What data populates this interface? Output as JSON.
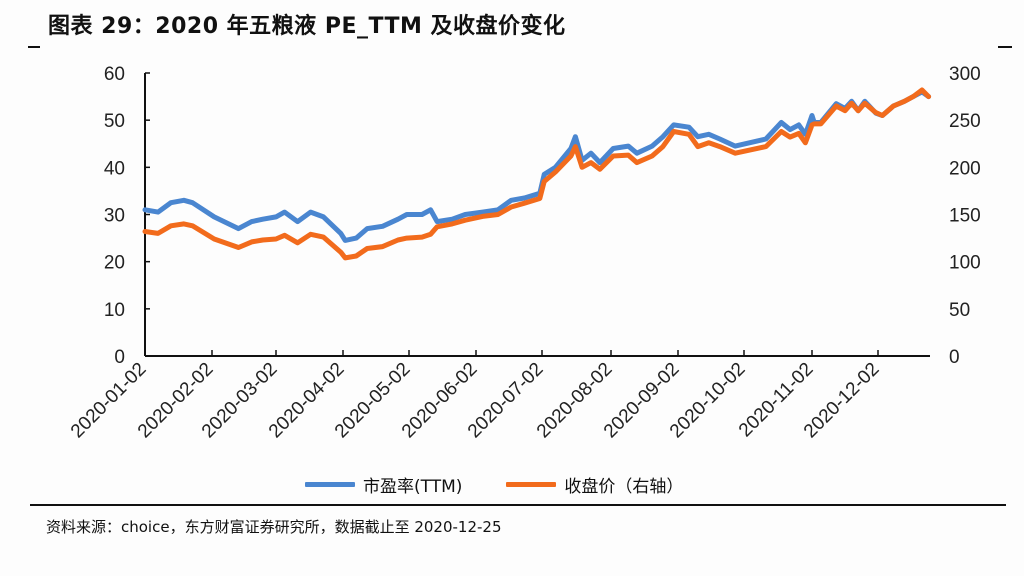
{
  "header": {
    "title": "图表 29：2020 年五粮液 PE_TTM 及收盘价变化"
  },
  "legend": {
    "pe": {
      "label": "市盈率(TTM)",
      "color": "#4a86d0"
    },
    "price": {
      "label": "收盘价（右轴）",
      "color": "#f26b1c"
    }
  },
  "footer": {
    "source": "资料来源：choice，东方财富证券研究所，数据截止至 2020-12-25"
  },
  "chart_data": {
    "type": "line",
    "title": "图表 29：2020 年五粮液 PE_TTM 及收盘价变化",
    "xlabel": "",
    "ylabel_left": "市盈率(TTM)",
    "ylabel_right": "收盘价（右轴）",
    "x_ticks": [
      "2020-01-02",
      "2020-02-02",
      "2020-03-02",
      "2020-04-02",
      "2020-05-02",
      "2020-06-02",
      "2020-07-02",
      "2020-08-02",
      "2020-09-02",
      "2020-10-02",
      "2020-11-02",
      "2020-12-02"
    ],
    "y_left_ticks": [
      0,
      10,
      20,
      30,
      40,
      50,
      60
    ],
    "y_right_ticks": [
      0,
      50,
      100,
      150,
      200,
      250,
      300
    ],
    "ylim_left": [
      0,
      60
    ],
    "ylim_right": [
      0,
      300
    ],
    "grid": false,
    "legend_position": "bottom",
    "series": [
      {
        "name": "市盈率(TTM)",
        "axis": "left",
        "color": "#4a86d0",
        "points": [
          [
            "2020-01-02",
            31.0
          ],
          [
            "2020-01-08",
            30.5
          ],
          [
            "2020-01-14",
            32.5
          ],
          [
            "2020-01-20",
            33.0
          ],
          [
            "2020-01-24",
            32.5
          ],
          [
            "2020-02-03",
            29.5
          ],
          [
            "2020-02-14",
            27.0
          ],
          [
            "2020-02-20",
            28.5
          ],
          [
            "2020-02-25",
            29.0
          ],
          [
            "2020-03-02",
            29.5
          ],
          [
            "2020-03-06",
            30.5
          ],
          [
            "2020-03-12",
            28.5
          ],
          [
            "2020-03-18",
            30.5
          ],
          [
            "2020-03-24",
            29.5
          ],
          [
            "2020-04-01",
            26.0
          ],
          [
            "2020-04-03",
            24.5
          ],
          [
            "2020-04-08",
            25.0
          ],
          [
            "2020-04-13",
            27.0
          ],
          [
            "2020-04-20",
            27.5
          ],
          [
            "2020-04-27",
            29.0
          ],
          [
            "2020-05-01",
            30.0
          ],
          [
            "2020-05-08",
            30.0
          ],
          [
            "2020-05-12",
            31.0
          ],
          [
            "2020-05-15",
            28.5
          ],
          [
            "2020-05-22",
            29.0
          ],
          [
            "2020-05-28",
            30.0
          ],
          [
            "2020-06-05",
            30.5
          ],
          [
            "2020-06-12",
            31.0
          ],
          [
            "2020-06-18",
            33.0
          ],
          [
            "2020-06-24",
            33.5
          ],
          [
            "2020-07-01",
            34.5
          ],
          [
            "2020-07-03",
            38.5
          ],
          [
            "2020-07-08",
            40.0
          ],
          [
            "2020-07-15",
            44.0
          ],
          [
            "2020-07-17",
            46.5
          ],
          [
            "2020-07-20",
            41.5
          ],
          [
            "2020-07-24",
            43.0
          ],
          [
            "2020-07-28",
            41.0
          ],
          [
            "2020-08-03",
            44.0
          ],
          [
            "2020-08-10",
            44.5
          ],
          [
            "2020-08-14",
            43.0
          ],
          [
            "2020-08-21",
            44.5
          ],
          [
            "2020-08-26",
            46.5
          ],
          [
            "2020-08-31",
            49.0
          ],
          [
            "2020-09-07",
            48.5
          ],
          [
            "2020-09-11",
            46.5
          ],
          [
            "2020-09-16",
            47.0
          ],
          [
            "2020-09-21",
            46.0
          ],
          [
            "2020-09-28",
            44.5
          ],
          [
            "2020-10-12",
            46.0
          ],
          [
            "2020-10-19",
            49.5
          ],
          [
            "2020-10-23",
            48.0
          ],
          [
            "2020-10-27",
            49.0
          ],
          [
            "2020-10-30",
            47.0
          ],
          [
            "2020-11-02",
            51.0
          ],
          [
            "2020-11-03",
            49.5
          ],
          [
            "2020-11-06",
            49.5
          ],
          [
            "2020-11-13",
            53.5
          ],
          [
            "2020-11-17",
            52.5
          ],
          [
            "2020-11-20",
            54.0
          ],
          [
            "2020-11-23",
            52.0
          ],
          [
            "2020-11-26",
            54.0
          ],
          [
            "2020-12-01",
            51.5
          ],
          [
            "2020-12-04",
            51.0
          ],
          [
            "2020-12-09",
            53.0
          ],
          [
            "2020-12-14",
            54.0
          ],
          [
            "2020-12-18",
            55.0
          ],
          [
            "2020-12-22",
            56.0
          ],
          [
            "2020-12-25",
            55.0
          ]
        ]
      },
      {
        "name": "收盘价（右轴）",
        "axis": "right",
        "color": "#f26b1c",
        "points": [
          [
            "2020-01-02",
            132
          ],
          [
            "2020-01-08",
            130
          ],
          [
            "2020-01-14",
            138
          ],
          [
            "2020-01-20",
            140
          ],
          [
            "2020-01-24",
            138
          ],
          [
            "2020-02-03",
            124
          ],
          [
            "2020-02-14",
            115
          ],
          [
            "2020-02-20",
            121
          ],
          [
            "2020-02-25",
            123
          ],
          [
            "2020-03-02",
            124
          ],
          [
            "2020-03-06",
            128
          ],
          [
            "2020-03-12",
            120
          ],
          [
            "2020-03-18",
            129
          ],
          [
            "2020-03-24",
            126
          ],
          [
            "2020-04-01",
            110
          ],
          [
            "2020-04-03",
            104
          ],
          [
            "2020-04-08",
            106
          ],
          [
            "2020-04-13",
            114
          ],
          [
            "2020-04-20",
            116
          ],
          [
            "2020-04-27",
            123
          ],
          [
            "2020-05-01",
            125
          ],
          [
            "2020-05-08",
            126
          ],
          [
            "2020-05-12",
            129
          ],
          [
            "2020-05-15",
            137
          ],
          [
            "2020-05-22",
            140
          ],
          [
            "2020-05-28",
            144
          ],
          [
            "2020-06-05",
            148
          ],
          [
            "2020-06-12",
            150
          ],
          [
            "2020-06-18",
            158
          ],
          [
            "2020-06-24",
            162
          ],
          [
            "2020-07-01",
            167
          ],
          [
            "2020-07-03",
            185
          ],
          [
            "2020-07-08",
            195
          ],
          [
            "2020-07-15",
            212
          ],
          [
            "2020-07-17",
            222
          ],
          [
            "2020-07-20",
            200
          ],
          [
            "2020-07-24",
            205
          ],
          [
            "2020-07-28",
            198
          ],
          [
            "2020-08-03",
            212
          ],
          [
            "2020-08-10",
            213
          ],
          [
            "2020-08-14",
            205
          ],
          [
            "2020-08-21",
            212
          ],
          [
            "2020-08-26",
            222
          ],
          [
            "2020-08-31",
            238
          ],
          [
            "2020-09-07",
            235
          ],
          [
            "2020-09-11",
            222
          ],
          [
            "2020-09-16",
            226
          ],
          [
            "2020-09-21",
            222
          ],
          [
            "2020-09-28",
            215
          ],
          [
            "2020-10-12",
            222
          ],
          [
            "2020-10-19",
            238
          ],
          [
            "2020-10-23",
            232
          ],
          [
            "2020-10-27",
            236
          ],
          [
            "2020-10-30",
            226
          ],
          [
            "2020-11-02",
            245
          ],
          [
            "2020-11-03",
            246
          ],
          [
            "2020-11-06",
            246
          ],
          [
            "2020-11-13",
            265
          ],
          [
            "2020-11-17",
            260
          ],
          [
            "2020-11-20",
            268
          ],
          [
            "2020-11-23",
            260
          ],
          [
            "2020-11-26",
            268
          ],
          [
            "2020-12-01",
            258
          ],
          [
            "2020-12-04",
            255
          ],
          [
            "2020-12-09",
            265
          ],
          [
            "2020-12-14",
            270
          ],
          [
            "2020-12-18",
            275
          ],
          [
            "2020-12-22",
            282
          ],
          [
            "2020-12-25",
            275
          ]
        ]
      }
    ]
  }
}
